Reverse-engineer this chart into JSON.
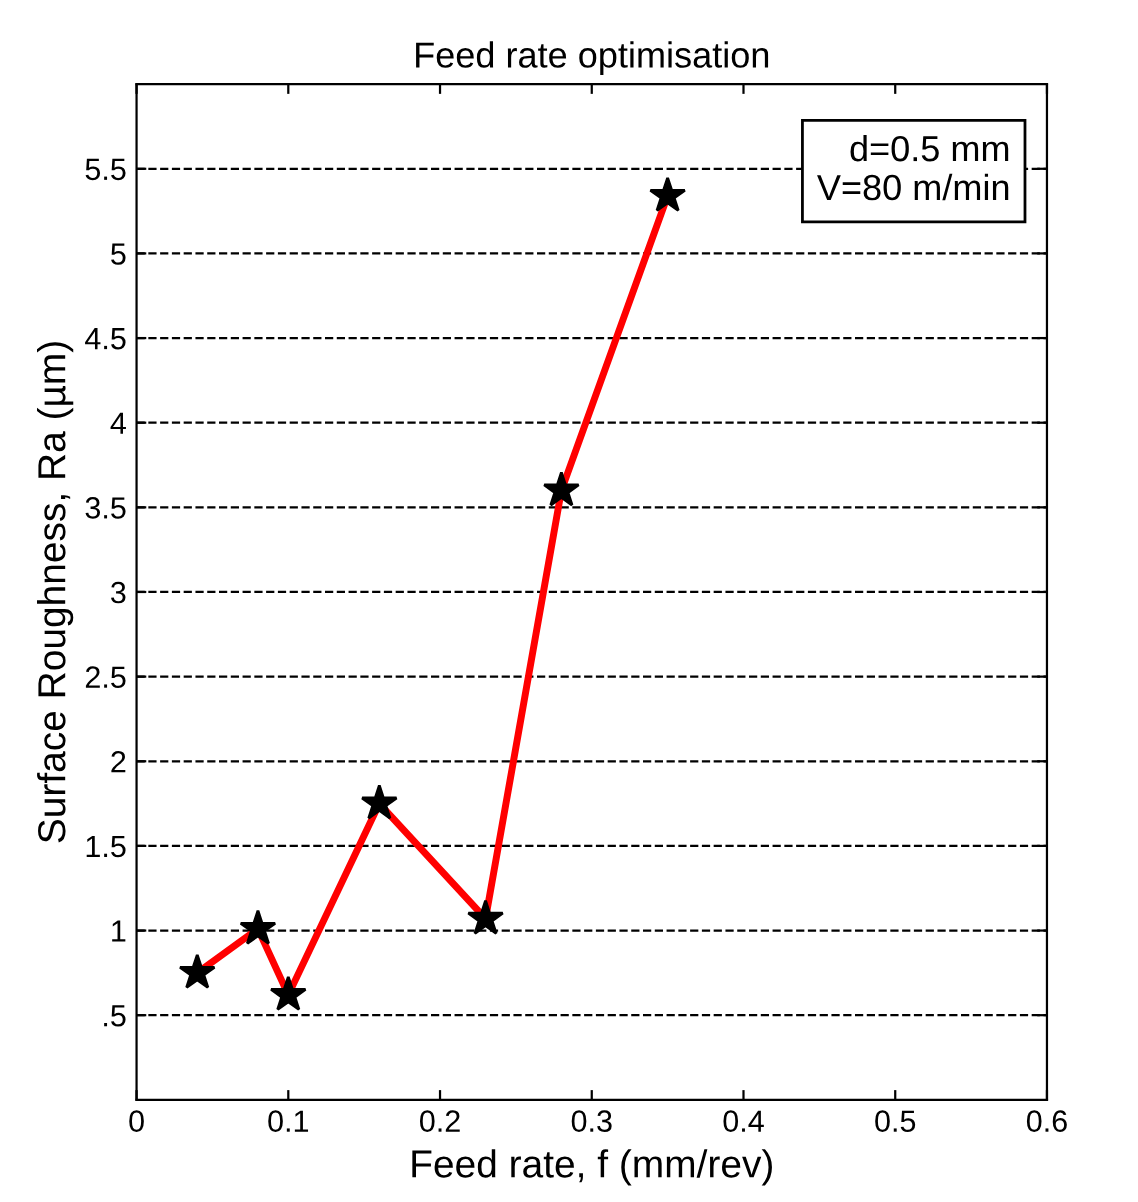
{
  "chart_data": {
    "type": "line",
    "title": "Feed rate optimisation",
    "xlabel": "Feed rate, f (mm/rev)",
    "ylabel": "Surface Roughness, Ra (µm)",
    "x": [
      0.04,
      0.08,
      0.1,
      0.16,
      0.23,
      0.28,
      0.35
    ],
    "series": [
      {
        "color": "#ff0000",
        "values": [
          0.75,
          1.01,
          0.62,
          1.75,
          1.07,
          3.6,
          5.34
        ]
      }
    ],
    "xlim": [
      0,
      0.6
    ],
    "xticks": [
      0,
      0.1,
      0.2,
      0.3,
      0.4,
      0.5,
      0.6
    ],
    "ylim": [
      0,
      6
    ],
    "yticks": [
      {
        "value": 0.5,
        "label": ".5"
      },
      1,
      1.5,
      2,
      2.5,
      3,
      3.5,
      4,
      4.5,
      5,
      5.5
    ],
    "grid": "y",
    "marker": "star",
    "line_style": "solid",
    "annotations": [
      "d=0.5 mm\nV=80 m/min"
    ]
  }
}
